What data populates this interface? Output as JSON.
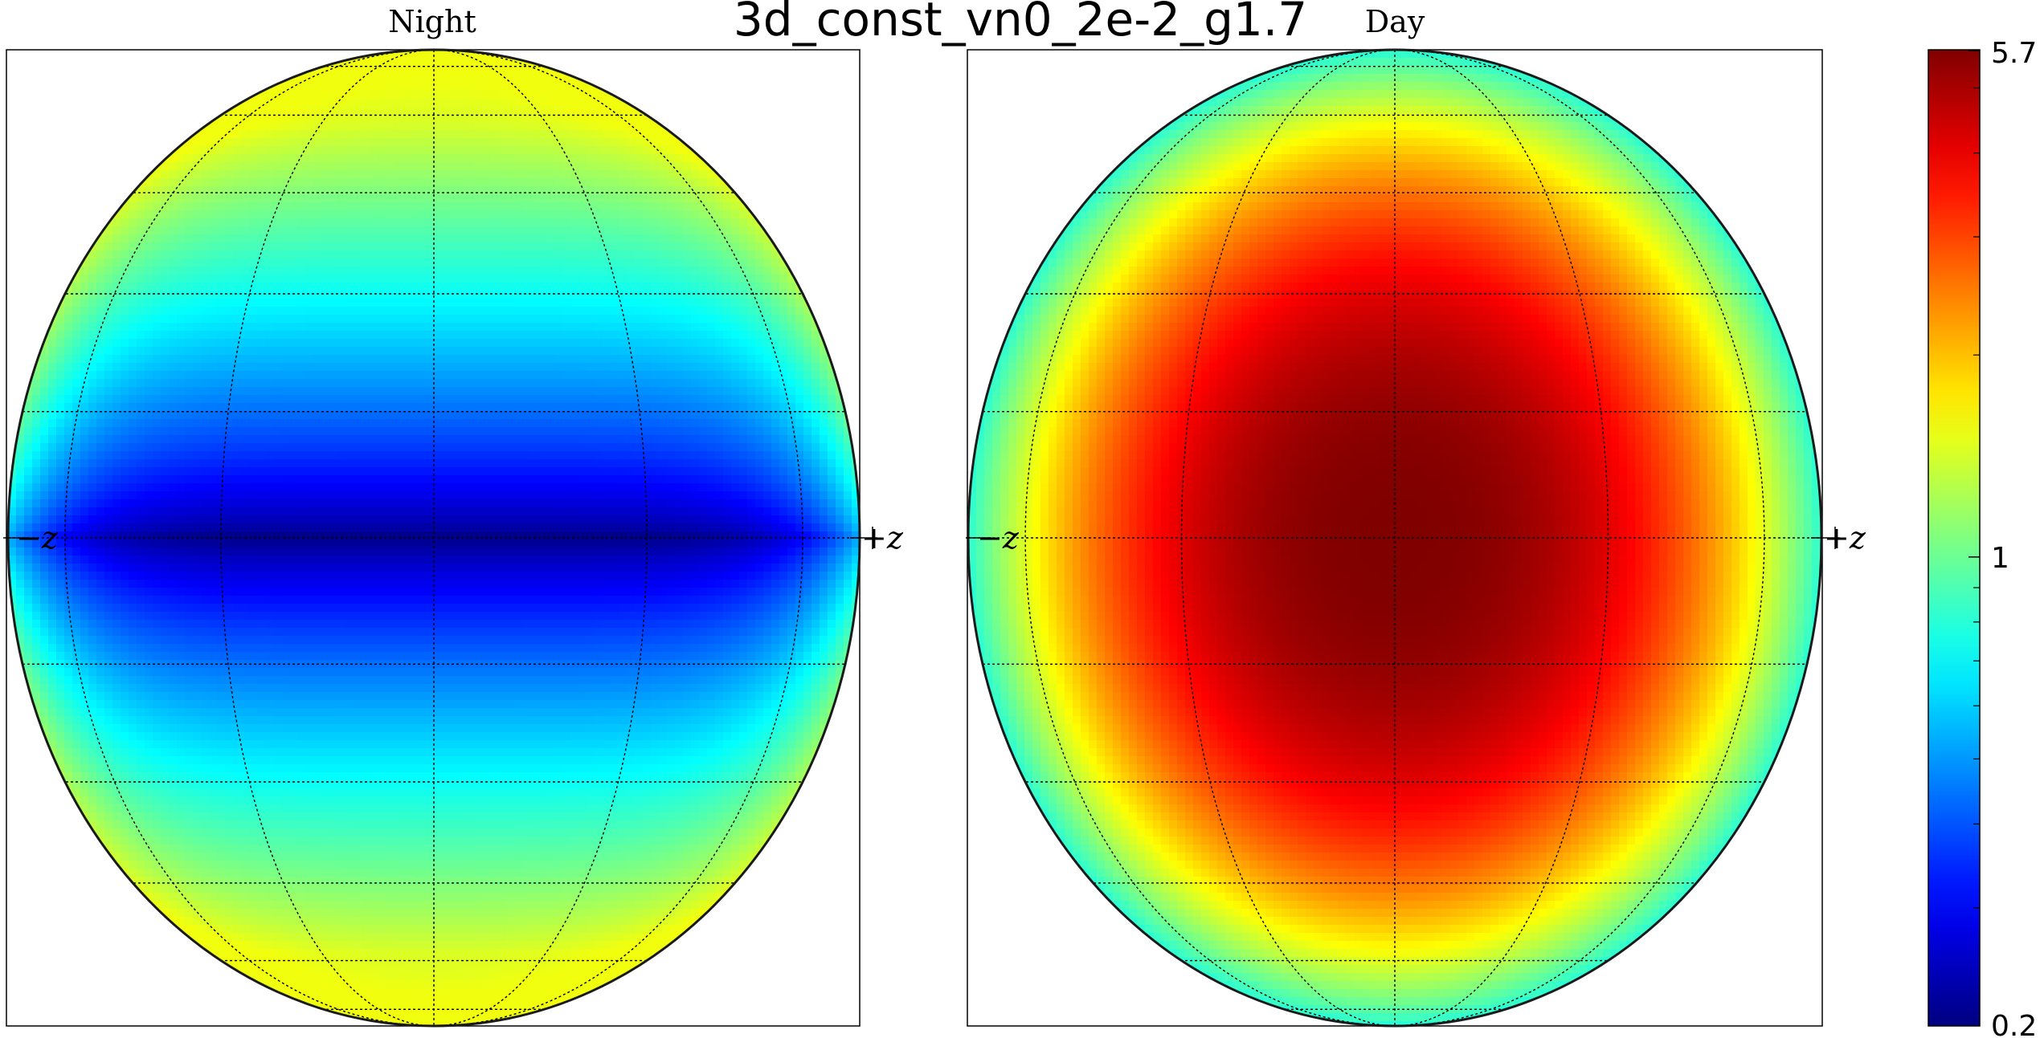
{
  "chart_data": {
    "type": "heatmap",
    "title": "3d_const_vn0_2e-2_g1.7",
    "projection": "orthographic globe",
    "colormap": "jet",
    "color_scale": "log",
    "colorbar": {
      "min": 0.2,
      "max": 5.7,
      "tick_labels": [
        "5.7",
        "1",
        "0.2"
      ],
      "minor_ticks": [
        0.3,
        0.4,
        0.5,
        0.6,
        0.7,
        0.8,
        0.9,
        2,
        3,
        4,
        5
      ],
      "placement": "right"
    },
    "panels": [
      {
        "name": "Night",
        "left_axis_label": "−z",
        "right_axis_label": "+z",
        "center_value": 0.2,
        "edge_value": 1.55,
        "pattern": "minimum along equator band, increasing toward poles and limb"
      },
      {
        "name": "Day",
        "left_axis_label": "−z",
        "right_axis_label": "+z",
        "center_value": 5.7,
        "edge_value": 0.8,
        "pattern": "maximum at disk center, decreasing radially toward limb"
      }
    ],
    "grid": true
  }
}
